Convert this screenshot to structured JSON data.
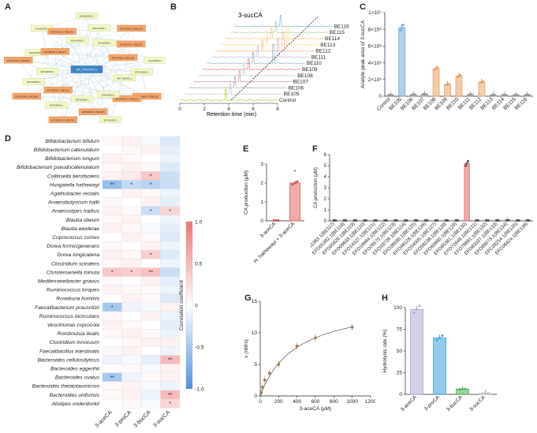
{
  "panels": {
    "A": "A",
    "B": "B",
    "C": "C",
    "D": "D",
    "E": "E",
    "F": "F",
    "G": "G",
    "H": "H"
  },
  "networkA": {
    "center": "WP_XXXXXXXX.1",
    "nodes": [
      {
        "label": "ENA000001.1",
        "type": "g"
      },
      {
        "label": "EFO12345.1",
        "type": "g"
      },
      {
        "label": "KAA00000.1",
        "type": "g"
      },
      {
        "label": "EFO00000.1 (BE116)",
        "type": "o"
      },
      {
        "label": "EFO00000.1 (BE110)",
        "type": "o"
      },
      {
        "label": "EFO00000.1 (BE113)",
        "type": "o"
      },
      {
        "label": "KAA00000.1",
        "type": "g"
      },
      {
        "label": "EFO00000.1",
        "type": "g"
      },
      {
        "label": "WP_000000.1",
        "type": "g"
      },
      {
        "label": "EFO00000.1 (BE115)",
        "type": "o"
      },
      {
        "label": "EFO00000.1 (BE112)",
        "type": "o"
      },
      {
        "label": "ENA00000.1",
        "type": "g"
      },
      {
        "label": "EFO00000.1",
        "type": "g"
      },
      {
        "label": "EFO00000.1 (BE107)",
        "type": "o"
      },
      {
        "label": "EFO00000.1",
        "type": "g"
      },
      {
        "label": "EFO00000.1 (BE108)",
        "type": "o"
      },
      {
        "label": "EFO00000.1",
        "type": "g"
      },
      {
        "label": "EFO00000.1 (BE111)",
        "type": "o"
      },
      {
        "label": "EFO00000.1 (BE106)",
        "type": "o"
      },
      {
        "label": "EFO00000.1",
        "type": "g"
      },
      {
        "label": "EFO00000.1",
        "type": "g"
      },
      {
        "label": "EFO00000.1 (BE109)",
        "type": "o"
      },
      {
        "label": "EFO00000.1",
        "type": "g"
      },
      {
        "label": "EFO00000.1 (BE114)",
        "type": "o"
      },
      {
        "label": "KAA00000.1",
        "type": "g"
      },
      {
        "label": "EFO00000.1 (BE105)",
        "type": "o"
      },
      {
        "label": "WLA00000.1",
        "type": "g"
      }
    ]
  },
  "chartB": {
    "title": "3-sucCA",
    "xlabel": "Retention time (min)",
    "xticks": [
      "0",
      "2",
      "4",
      "6",
      "8"
    ],
    "traces": [
      "BE116",
      "BE115",
      "BE114",
      "BE113",
      "BE112",
      "BE111",
      "BE110",
      "BE109",
      "BE108",
      "BE107",
      "BE106",
      "BE105",
      "Control"
    ],
    "peak_traces": [
      "BE113",
      "BE112",
      "BE111",
      "BE110"
    ]
  },
  "chart_data": [
    {
      "id": "C",
      "type": "bar",
      "ylabel": "Analyte peak area of 3-sucCA",
      "yticks": [
        "0",
        "2×10⁶",
        "4×10⁶",
        "6×10⁶",
        "8×10⁶",
        "1×10⁷"
      ],
      "ylim": [
        0,
        10000000
      ],
      "categories": [
        "Control",
        "BE105",
        "BE106",
        "BE107",
        "BE108",
        "BE109",
        "BE110",
        "BE111",
        "BE112",
        "BE113",
        "BE114",
        "BE115",
        "BE116"
      ],
      "values": [
        150000,
        8200000,
        200000,
        250000,
        3300000,
        1400000,
        2400000,
        200000,
        1700000,
        150000,
        150000,
        150000,
        150000
      ],
      "colors": [
        "#999999",
        "#6fa8dc",
        "#999999",
        "#999999",
        "#e8a366",
        "#e8a366",
        "#e8a366",
        "#999999",
        "#e8a366",
        "#999999",
        "#999999",
        "#999999",
        "#999999"
      ]
    },
    {
      "id": "D",
      "type": "heatmap",
      "columns": [
        "3-aceCA",
        "3-proCA",
        "3-bucCA",
        "3-sucCA"
      ],
      "rows": [
        "Bifidobacterium bifidum",
        "Bifidobacterium catenulatum",
        "Bifidobacterium longum",
        "Bifidobacterium pseudocatenulatum",
        "Collinsella aerofaciens",
        "Hungatella hathewayi",
        "Agathobacter rectalis",
        "Anaerobutyricum hallii",
        "Anaerostipes hadrus",
        "Blautia obeum",
        "Blautia wexlerae",
        "Coprococcus comes",
        "Dorea formicigenerans",
        "Dorea longicatena",
        "Clostridium scindens",
        "Christensenella minuta",
        "Mediterraneibacter gnavus",
        "Ruminococcus torques",
        "Roseburia hominis",
        "Faecalibacterium prausnitzii",
        "Ruminococcus bicirculans",
        "Vescimonas coprocola",
        "Romboutsia ilealis",
        "Clostridium innocuum",
        "Faecalibacillus intestinalis",
        "Bacteroides cellulosilyticus",
        "Bacteroides eggerthii",
        "Bacteroides ovatus",
        "Bacteroides thetaiotaomicron",
        "Bacteroides uniformis",
        "Alistipes onderdonkii"
      ],
      "values": [
        [
          0.05,
          0.1,
          -0.05,
          -0.2
        ],
        [
          0,
          0.05,
          0.1,
          -0.15
        ],
        [
          0.1,
          0.05,
          0,
          -0.1
        ],
        [
          0.05,
          0.1,
          0.05,
          -0.2
        ],
        [
          0.1,
          0.15,
          0.4,
          -0.3
        ],
        [
          -0.6,
          -0.35,
          -0.4,
          -0.3
        ],
        [
          0,
          0.1,
          0.05,
          -0.1
        ],
        [
          0.05,
          0,
          0.1,
          -0.15
        ],
        [
          0.1,
          0.05,
          -0.3,
          0.3
        ],
        [
          0.05,
          0.1,
          0,
          -0.1
        ],
        [
          0.1,
          0.05,
          -0.05,
          -0.15
        ],
        [
          0,
          0.1,
          0.05,
          -0.2
        ],
        [
          0.05,
          0,
          0.1,
          -0.1
        ],
        [
          0.1,
          0.05,
          0.35,
          -0.2
        ],
        [
          0.05,
          0.1,
          0,
          -0.1
        ],
        [
          0.4,
          0.35,
          0.45,
          -0.3
        ],
        [
          0.05,
          0,
          0.1,
          -0.15
        ],
        [
          0.1,
          0.05,
          0.05,
          -0.1
        ],
        [
          0,
          0.1,
          0.05,
          -0.2
        ],
        [
          -0.5,
          -0.1,
          -0.05,
          0.1
        ],
        [
          0.05,
          0,
          0.1,
          -0.1
        ],
        [
          0.1,
          0.05,
          0,
          -0.15
        ],
        [
          0.05,
          0.1,
          0.05,
          -0.1
        ],
        [
          0,
          0.05,
          0.1,
          0.1
        ],
        [
          0.05,
          0.1,
          0,
          -0.1
        ],
        [
          -0.1,
          -0.05,
          -0.15,
          0.5
        ],
        [
          0,
          0.05,
          -0.05,
          0.1
        ],
        [
          -0.5,
          -0.1,
          0.05,
          0.1
        ],
        [
          0.05,
          0.1,
          -0.05,
          -0.1
        ],
        [
          0.05,
          0.1,
          -0.1,
          0.5
        ],
        [
          0,
          0.05,
          -0.05,
          0.3
        ]
      ],
      "stars": [
        [
          "",
          "",
          "",
          ""
        ],
        [
          "",
          "",
          "",
          ""
        ],
        [
          "",
          "",
          "",
          ""
        ],
        [
          "",
          "",
          "",
          ""
        ],
        [
          "",
          "",
          "*",
          ""
        ],
        [
          "**",
          "*",
          "*",
          ""
        ],
        [
          "",
          "",
          "",
          ""
        ],
        [
          "",
          "",
          "",
          ""
        ],
        [
          "",
          "",
          "*",
          "*"
        ],
        [
          "",
          "",
          "",
          ""
        ],
        [
          "",
          "",
          "",
          ""
        ],
        [
          "",
          "",
          "",
          ""
        ],
        [
          "",
          "",
          "",
          ""
        ],
        [
          "",
          "",
          "*",
          ""
        ],
        [
          "",
          "",
          "",
          ""
        ],
        [
          "*",
          "*",
          "**",
          ""
        ],
        [
          "",
          "",
          "",
          ""
        ],
        [
          "",
          "",
          "",
          ""
        ],
        [
          "",
          "",
          "",
          ""
        ],
        [
          "*",
          "",
          "",
          ""
        ],
        [
          "",
          "",
          "",
          ""
        ],
        [
          "",
          "",
          "",
          ""
        ],
        [
          "",
          "",
          "",
          ""
        ],
        [
          "",
          "",
          "",
          ""
        ],
        [
          "",
          "",
          "",
          ""
        ],
        [
          "",
          "",
          "",
          "**"
        ],
        [
          "",
          "",
          "",
          ""
        ],
        [
          "**",
          "",
          "",
          ""
        ],
        [
          "",
          "",
          "",
          ""
        ],
        [
          "",
          "",
          "",
          "**"
        ],
        [
          "",
          "",
          "",
          "*"
        ]
      ],
      "legend_title": "Correlation coefficient",
      "legend_ticks": [
        "1.0",
        "0.5",
        "0",
        "-0.5",
        "-1.0"
      ]
    },
    {
      "id": "E",
      "type": "bar",
      "ylabel": "CA production (μM)",
      "yticks": [
        "0",
        "1",
        "2",
        "3"
      ],
      "ylim": [
        0,
        3
      ],
      "categories": [
        "3-aceCA",
        "H. hathewayi + 3-aceCA"
      ],
      "values": [
        0,
        2.0
      ],
      "star": "*"
    },
    {
      "id": "F",
      "type": "bar",
      "ylabel": "CA production (μM)",
      "yticks": [
        "0",
        "1",
        "2",
        "3",
        "4",
        "5",
        "6"
      ],
      "ylim": [
        0,
        6
      ],
      "categories": [
        "EFD01363.1(BE117)",
        "EFD05392.1(BE118)",
        "EFD05626.1(BE119)",
        "EFO09633.1(BE120)",
        "EFO14327.1(BE121)",
        "EFO18984.1(BE122)",
        "EFO26570.1(BE123)",
        "EFO33728.1(BE124)",
        "EFO38590.1(BE125)",
        "EFO46128.1(BE126)",
        "EFO54005.1(BE127)",
        "EFO58238.1(BE128)",
        "EFO60880.1(BE129)",
        "EFO65381.1(BE130)",
        "EFO72649.1(BE131)",
        "EFO78891.1(BE132)",
        "EFO82037.1(BE133)",
        "EFO89073.1(BE134)",
        "EFC08254.1(BE135)",
        "EFC08424.1(BE136)"
      ],
      "values": [
        0,
        0,
        0,
        0,
        0,
        0,
        0,
        0,
        0,
        0,
        0,
        0,
        0,
        5.2,
        0,
        0,
        0,
        0.05,
        0,
        0
      ]
    },
    {
      "id": "G",
      "type": "scatter",
      "ylabel": "v (nM/s)",
      "xlabel": "3-aceCA (μM)",
      "xticks": [
        "0",
        "200",
        "400",
        "600",
        "800",
        "1000",
        "1200"
      ],
      "yticks": [
        "0",
        "5",
        "10",
        "15"
      ],
      "xlim": [
        0,
        1200
      ],
      "ylim": [
        0,
        15
      ],
      "x": [
        10,
        25,
        50,
        100,
        200,
        400,
        600,
        1000
      ],
      "y": [
        0.5,
        1.4,
        2.5,
        3.6,
        5.0,
        7.9,
        9.2,
        10.9
      ]
    },
    {
      "id": "H",
      "type": "bar",
      "ylabel": "Hydrolysis rate (%)",
      "yticks": [
        "0",
        "25",
        "50",
        "75",
        "100"
      ],
      "ylim": [
        0,
        100
      ],
      "categories": [
        "3-aceCA",
        "3-proCA",
        "3-bucCA",
        "3-sucCA"
      ],
      "values": [
        98,
        65,
        6,
        1
      ],
      "colors": [
        "#b4a7d6",
        "#3d9fdc",
        "#4caf50",
        "#bdbdbd"
      ]
    }
  ]
}
